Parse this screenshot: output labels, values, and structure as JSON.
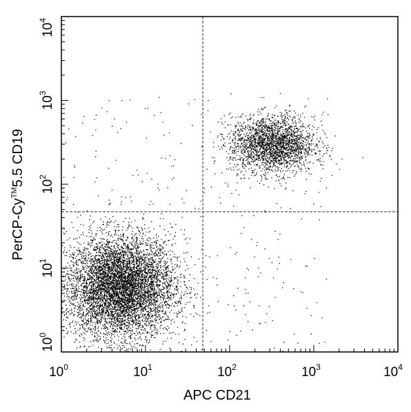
{
  "chart_data": {
    "type": "scatter",
    "xlabel": "APC CD21",
    "ylabel_prefix": "PerCP-Cy",
    "ylabel_tm": "TM",
    "ylabel_suffix": "5.5 CD19",
    "x_scale": "log",
    "y_scale": "log",
    "xlim": [
      1,
      10000
    ],
    "ylim": [
      1,
      10000
    ],
    "x_ticks": [
      {
        "value": 1,
        "base": "10",
        "exp": "0"
      },
      {
        "value": 10,
        "base": "10",
        "exp": "1"
      },
      {
        "value": 100,
        "base": "10",
        "exp": "2"
      },
      {
        "value": 1000,
        "base": "10",
        "exp": "3"
      },
      {
        "value": 10000,
        "base": "10",
        "exp": "4"
      }
    ],
    "y_ticks": [
      {
        "value": 1,
        "base": "10",
        "exp": "0"
      },
      {
        "value": 10,
        "base": "10",
        "exp": "1"
      },
      {
        "value": 100,
        "base": "10",
        "exp": "2"
      },
      {
        "value": 1000,
        "base": "10",
        "exp": "3"
      },
      {
        "value": 10000,
        "base": "10",
        "exp": "4"
      }
    ],
    "quadrant_gates": {
      "x": 48,
      "y": 47
    },
    "populations": [
      {
        "center_x": 5,
        "center_y": 6,
        "spread_log_x": 0.32,
        "spread_log_y": 0.3,
        "count": 6500
      },
      {
        "center_x": 320,
        "center_y": 300,
        "spread_log_x": 0.25,
        "spread_log_y": 0.17,
        "count": 2400
      },
      {
        "scatter_range_x": [
          1,
          1500
        ],
        "scatter_range_y": [
          1,
          1100
        ],
        "count": 350
      }
    ],
    "grid": false,
    "legend": "none"
  }
}
